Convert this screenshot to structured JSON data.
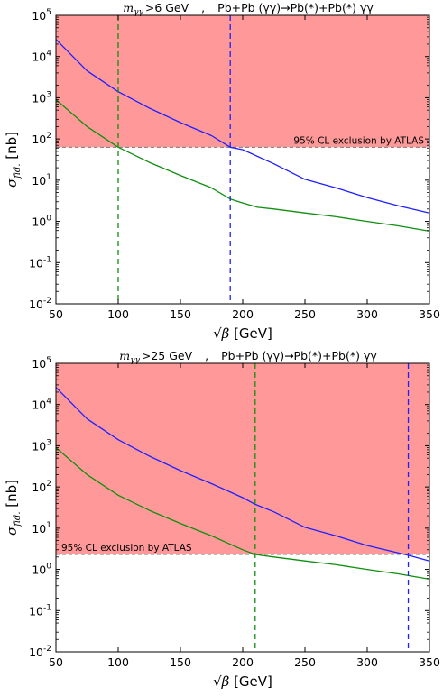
{
  "chart_data": [
    {
      "type": "line",
      "title_mass": "m",
      "title_mass_sub": "γγ",
      "title_cut": ">6 GeV",
      "title_sep": ",",
      "title_process": "Pb+Pb (γγ)→Pb(*)+Pb(*) γγ",
      "xlabel_root": "√β",
      "xlabel_unit": " [GeV]",
      "ylabel_sigma": "σ",
      "ylabel_sub": "fid.",
      "ylabel_unit": " [nb]",
      "xlim": [
        50,
        350
      ],
      "ylim": [
        0.01,
        100000
      ],
      "yscale": "log",
      "xticks": [
        50,
        100,
        150,
        200,
        250,
        300,
        350
      ],
      "yticks": [
        {
          "v": 0.01,
          "m": "10",
          "e": "-2"
        },
        {
          "v": 0.1,
          "m": "10",
          "e": "-1"
        },
        {
          "v": 1,
          "m": "10",
          "e": "0"
        },
        {
          "v": 10,
          "m": "10",
          "e": "1"
        },
        {
          "v": 100,
          "m": "10",
          "e": "2"
        },
        {
          "v": 1000,
          "m": "10",
          "e": "3"
        },
        {
          "v": 10000,
          "m": "10",
          "e": "4"
        },
        {
          "v": 100000,
          "m": "10",
          "e": "5"
        }
      ],
      "exclusion": {
        "level": 63,
        "label": "95% CL exclusion by ATLAS",
        "label_position": "right",
        "color": "#ff9999"
      },
      "series": [
        {
          "color": "#1f1fff",
          "x": [
            50,
            75,
            100,
            125,
            150,
            175,
            190,
            200,
            225,
            250,
            275,
            300,
            325,
            350
          ],
          "y": [
            26000,
            4500,
            1400,
            560,
            250,
            120,
            63,
            55,
            25,
            10.5,
            6.5,
            3.8,
            2.4,
            1.6
          ]
        },
        {
          "color": "#0f8f0f",
          "x": [
            50,
            75,
            100,
            125,
            150,
            175,
            190,
            200,
            212,
            225,
            250,
            275,
            300,
            325,
            350
          ],
          "y": [
            900,
            200,
            63,
            27,
            13,
            6.5,
            3.5,
            2.8,
            2.2,
            2.0,
            1.6,
            1.3,
            1.0,
            0.78,
            0.58
          ]
        }
      ],
      "vlines": [
        {
          "x": 100,
          "color": "#0f8f0f"
        },
        {
          "x": 190,
          "color": "#1f1fff"
        }
      ]
    },
    {
      "type": "line",
      "title_mass": "m",
      "title_mass_sub": "γγ",
      "title_cut": ">25 GeV",
      "title_sep": ",",
      "title_process": "Pb+Pb (γγ)→Pb(*)+Pb(*) γγ",
      "xlabel_root": "√β",
      "xlabel_unit": " [GeV]",
      "ylabel_sigma": "σ",
      "ylabel_sub": "fid.",
      "ylabel_unit": " [nb]",
      "xlim": [
        50,
        350
      ],
      "ylim": [
        0.01,
        100000
      ],
      "yscale": "log",
      "xticks": [
        50,
        100,
        150,
        200,
        250,
        300,
        350
      ],
      "yticks": [
        {
          "v": 0.01,
          "m": "10",
          "e": "-2"
        },
        {
          "v": 0.1,
          "m": "10",
          "e": "-1"
        },
        {
          "v": 1,
          "m": "10",
          "e": "0"
        },
        {
          "v": 10,
          "m": "10",
          "e": "1"
        },
        {
          "v": 100,
          "m": "10",
          "e": "2"
        },
        {
          "v": 1000,
          "m": "10",
          "e": "3"
        },
        {
          "v": 10000,
          "m": "10",
          "e": "4"
        },
        {
          "v": 100000,
          "m": "10",
          "e": "5"
        }
      ],
      "exclusion": {
        "level": 2.3,
        "label": "95% CL exclusion by ATLAS",
        "label_position": "left",
        "color": "#ff9999"
      },
      "series": [
        {
          "color": "#1f1fff",
          "x": [
            50,
            75,
            100,
            125,
            150,
            175,
            200,
            210,
            225,
            250,
            275,
            300,
            333,
            350
          ],
          "y": [
            26000,
            4500,
            1400,
            560,
            250,
            120,
            55,
            38,
            25,
            10.5,
            6.5,
            3.8,
            2.2,
            1.6
          ]
        },
        {
          "color": "#0f8f0f",
          "x": [
            50,
            75,
            100,
            125,
            150,
            175,
            200,
            210,
            225,
            250,
            275,
            300,
            325,
            350
          ],
          "y": [
            900,
            200,
            63,
            27,
            13,
            6.5,
            3.0,
            2.3,
            2.0,
            1.6,
            1.3,
            1.0,
            0.78,
            0.58
          ]
        }
      ],
      "vlines": [
        {
          "x": 210,
          "color": "#0f8f0f"
        },
        {
          "x": 333,
          "color": "#1f1fff"
        }
      ]
    }
  ]
}
